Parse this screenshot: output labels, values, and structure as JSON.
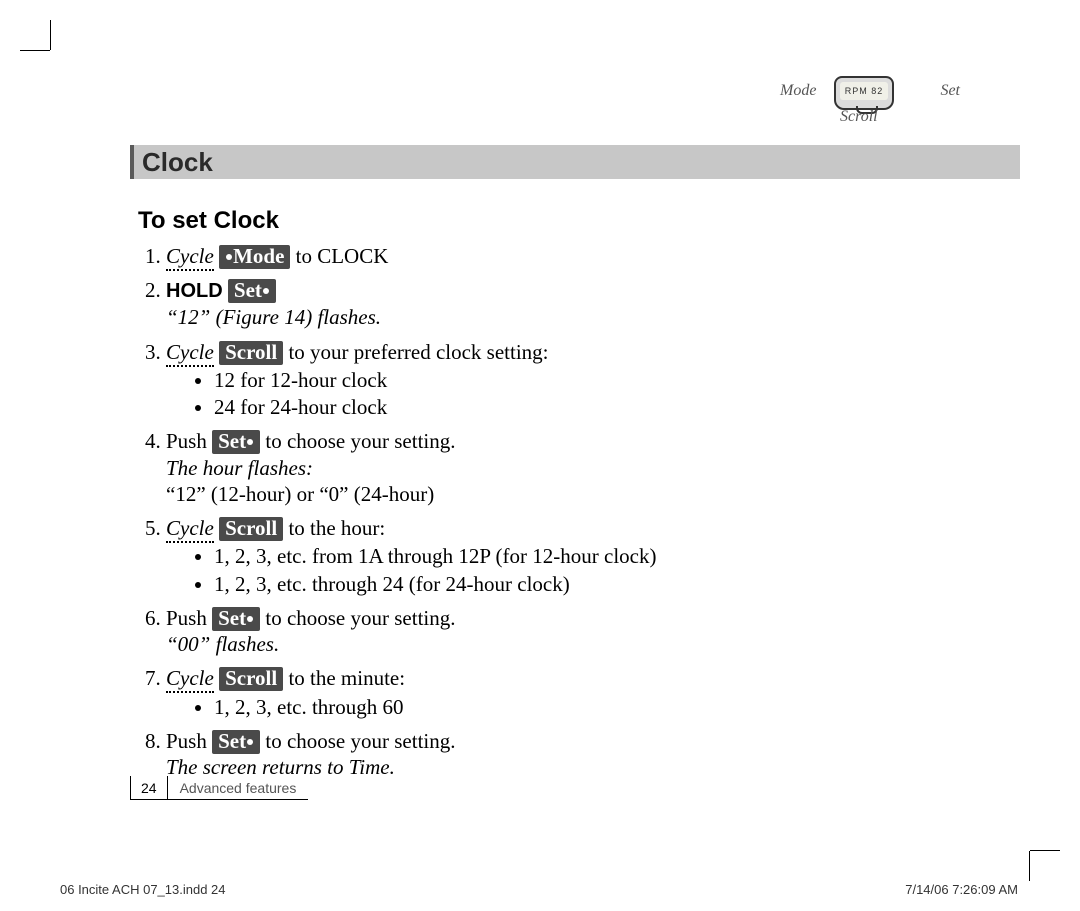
{
  "device": {
    "mode_label": "Mode",
    "set_label": "Set",
    "scroll_label": "Scroll"
  },
  "buttons": {
    "mode": "Mode",
    "set": "Set",
    "scroll": "Scroll"
  },
  "section_title": "Clock",
  "subheading": "To set Clock",
  "steps": {
    "s1": {
      "pre": "Cycle",
      "post": " to CLOCK"
    },
    "s2": {
      "hold": "HOLD",
      "note": "“12” (Figure 14) flashes."
    },
    "s3": {
      "pre": "Cycle",
      "post": " to your preferred clock setting:",
      "b1": "12 for 12-hour clock",
      "b2": "24 for 24-hour clock"
    },
    "s4": {
      "pre": "Push ",
      "post": " to choose your setting.",
      "note": "The hour flashes:",
      "line": "“12” (12-hour) or “0” (24-hour)"
    },
    "s5": {
      "pre": "Cycle",
      "post": " to the hour:",
      "b1": "1, 2, 3, etc. from 1A through 12P (for 12-hour clock)",
      "b2": "1, 2, 3, etc. through 24 (for 24-hour clock)"
    },
    "s6": {
      "pre": "Push ",
      "post": " to choose your setting.",
      "note": "“00” flashes."
    },
    "s7": {
      "pre": "Cycle",
      "post": " to the minute:",
      "b1": "1, 2, 3, etc. through 60"
    },
    "s8": {
      "pre": "Push ",
      "post": " to choose your setting.",
      "note": "The screen returns to Time."
    }
  },
  "footer": {
    "page_number": "24",
    "section_label": "Advanced features"
  },
  "slug": {
    "file": "06 Incite ACH 07_13.indd   24",
    "timestamp": "7/14/06   7:26:09 AM"
  },
  "colors": {
    "banner_bg": "#c7c7c7",
    "banner_accent": "#5a5a5a",
    "btn_bg": "#4a4a4a",
    "btn_fg": "#ffffff",
    "text": "#000000",
    "muted": "#555555"
  },
  "typography": {
    "body_pt": 21,
    "banner_pt": 26,
    "subhead_pt": 24,
    "footer_pt": 14,
    "slug_pt": 13
  }
}
